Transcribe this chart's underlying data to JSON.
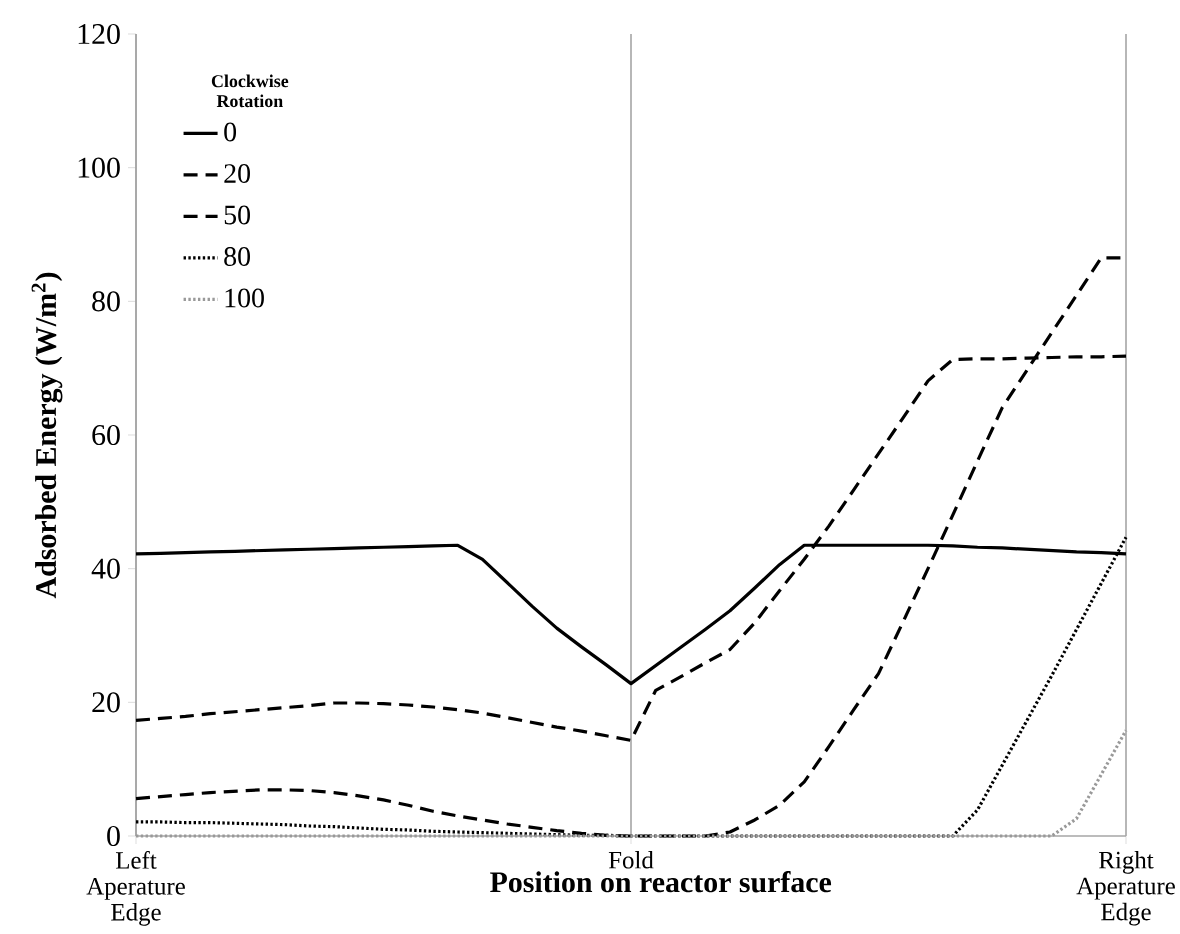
{
  "chart_data": {
    "type": "line",
    "xlabel": "Position on reactor surface",
    "ylabel": "Adsorbed Energy (W/m$^{2}$)",
    "legend_title": "Clockwise Rotation",
    "categories": [
      "Left Aperature Edge",
      null,
      null,
      null,
      null,
      null,
      null,
      null,
      null,
      null,
      null,
      null,
      null,
      null,
      null,
      null,
      null,
      null,
      null,
      null,
      "Fold",
      null,
      null,
      null,
      null,
      null,
      null,
      null,
      null,
      null,
      null,
      null,
      null,
      null,
      null,
      null,
      null,
      null,
      null,
      null,
      "Right Aperature Edge"
    ],
    "ylim": [
      0,
      120
    ],
    "yticks": [
      0,
      20,
      40,
      60,
      80,
      100,
      120
    ],
    "grid": "x",
    "legend": "top left",
    "series": [
      {
        "name": "0",
        "color": "#000000",
        "line_style": "solid",
        "values": [
          42.2,
          42.3,
          42.4,
          42.5,
          42.6,
          42.7,
          42.8,
          42.9,
          43.0,
          43.1,
          43.2,
          43.3,
          43.4,
          43.5,
          41.4,
          37.9,
          34.4,
          31.1,
          28.3,
          25.6,
          22.8,
          25.5,
          28.2,
          30.9,
          33.7,
          37.1,
          40.6,
          43.5,
          43.5,
          43.5,
          43.5,
          43.5,
          43.5,
          43.4,
          43.2,
          43.1,
          42.9,
          42.7,
          42.5,
          42.4,
          42.2
        ]
      },
      {
        "name": "20",
        "color": "#000000",
        "line_style": "dashed",
        "values": [
          17.3,
          17.6,
          17.9,
          18.3,
          18.6,
          18.9,
          19.2,
          19.5,
          19.9,
          19.9,
          19.8,
          19.6,
          19.3,
          18.9,
          18.4,
          17.7,
          17.0,
          16.3,
          15.7,
          15.0,
          14.3,
          21.8,
          23.8,
          25.9,
          27.9,
          31.9,
          36.7,
          41.4,
          46.4,
          51.8,
          57.2,
          62.6,
          68.1,
          71.3,
          71.4,
          71.4,
          71.5,
          71.6,
          71.7,
          71.7,
          71.8
        ]
      },
      {
        "name": "50",
        "color": "#000000",
        "line_style": "dashed",
        "values": [
          5.6,
          5.9,
          6.2,
          6.5,
          6.7,
          6.9,
          6.9,
          6.8,
          6.5,
          6.0,
          5.4,
          4.6,
          3.7,
          3.0,
          2.4,
          1.8,
          1.3,
          0.8,
          0.4,
          0.1,
          0,
          0,
          0,
          0,
          0.6,
          2.4,
          4.6,
          8.1,
          13.4,
          18.9,
          24.3,
          32.1,
          40.0,
          48.0,
          56.1,
          64.1,
          69.7,
          75.3,
          80.9,
          86.5,
          86.5
        ]
      },
      {
        "name": "80",
        "color": "#000000",
        "line_style": "dotted",
        "values": [
          2.1,
          2.1,
          2.0,
          2.0,
          1.9,
          1.8,
          1.7,
          1.5,
          1.4,
          1.2,
          1.0,
          0.9,
          0.7,
          0.6,
          0.5,
          0.4,
          0.3,
          0.2,
          0.1,
          0.1,
          0,
          0,
          0,
          0,
          0,
          0,
          0,
          0,
          0,
          0,
          0,
          0,
          0,
          0,
          3.9,
          10.6,
          17.3,
          24.0,
          30.9,
          37.8,
          44.7
        ]
      },
      {
        "name": "100",
        "color": "#999999",
        "line_style": "dotted",
        "values": [
          0,
          0,
          0,
          0,
          0,
          0,
          0,
          0,
          0,
          0,
          0,
          0,
          0,
          0,
          0,
          0,
          0,
          0,
          0,
          0,
          0,
          0,
          0,
          0,
          0,
          0,
          0,
          0,
          0,
          0,
          0,
          0,
          0,
          0,
          0,
          0,
          0,
          0,
          2.6,
          9.2,
          15.8
        ]
      }
    ]
  }
}
